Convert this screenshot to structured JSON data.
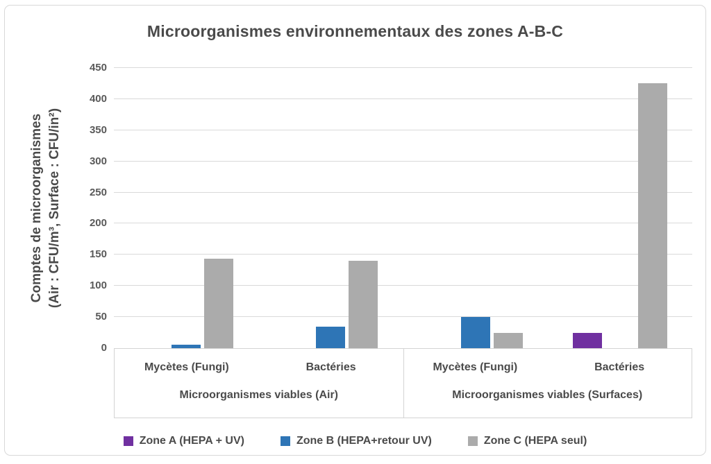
{
  "chart_data": {
    "type": "bar",
    "title": "Microorganismes environnementaux des zones A-B-C",
    "y_axis_title_line1": "Comptes de microorganismes",
    "y_axis_title_line2": "(Air : CFU/m³, Surface : CFU/in²)",
    "ylim": [
      0,
      450
    ],
    "y_tick_step": 50,
    "y_ticks": [
      0,
      50,
      100,
      150,
      200,
      250,
      300,
      350,
      400,
      450
    ],
    "grid": true,
    "legend_position": "bottom",
    "groups": [
      {
        "label": "Microorganismes viables (Air)",
        "categories": [
          "Mycètes (Fungi)",
          "Bactéries"
        ]
      },
      {
        "label": "Microorganismes viables (Surfaces)",
        "categories": [
          "Mycètes (Fungi)",
          "Bactéries"
        ]
      }
    ],
    "series": [
      {
        "name": "Zone A (HEPA + UV)",
        "color": "#7030A0",
        "values": [
          0,
          0,
          0,
          25
        ]
      },
      {
        "name": "Zone B (HEPA+retour UV)",
        "color": "#2E75B6",
        "values": [
          6,
          35,
          50,
          0
        ]
      },
      {
        "name": "Zone C (HEPA seul)",
        "color": "#ABABAB",
        "values": [
          144,
          140,
          25,
          425
        ]
      }
    ]
  },
  "colors": {
    "title_text": "#4A4A4A",
    "axis_text": "#595959",
    "gridline": "#D9D9D9",
    "frame_border": "#D8D8D8"
  }
}
